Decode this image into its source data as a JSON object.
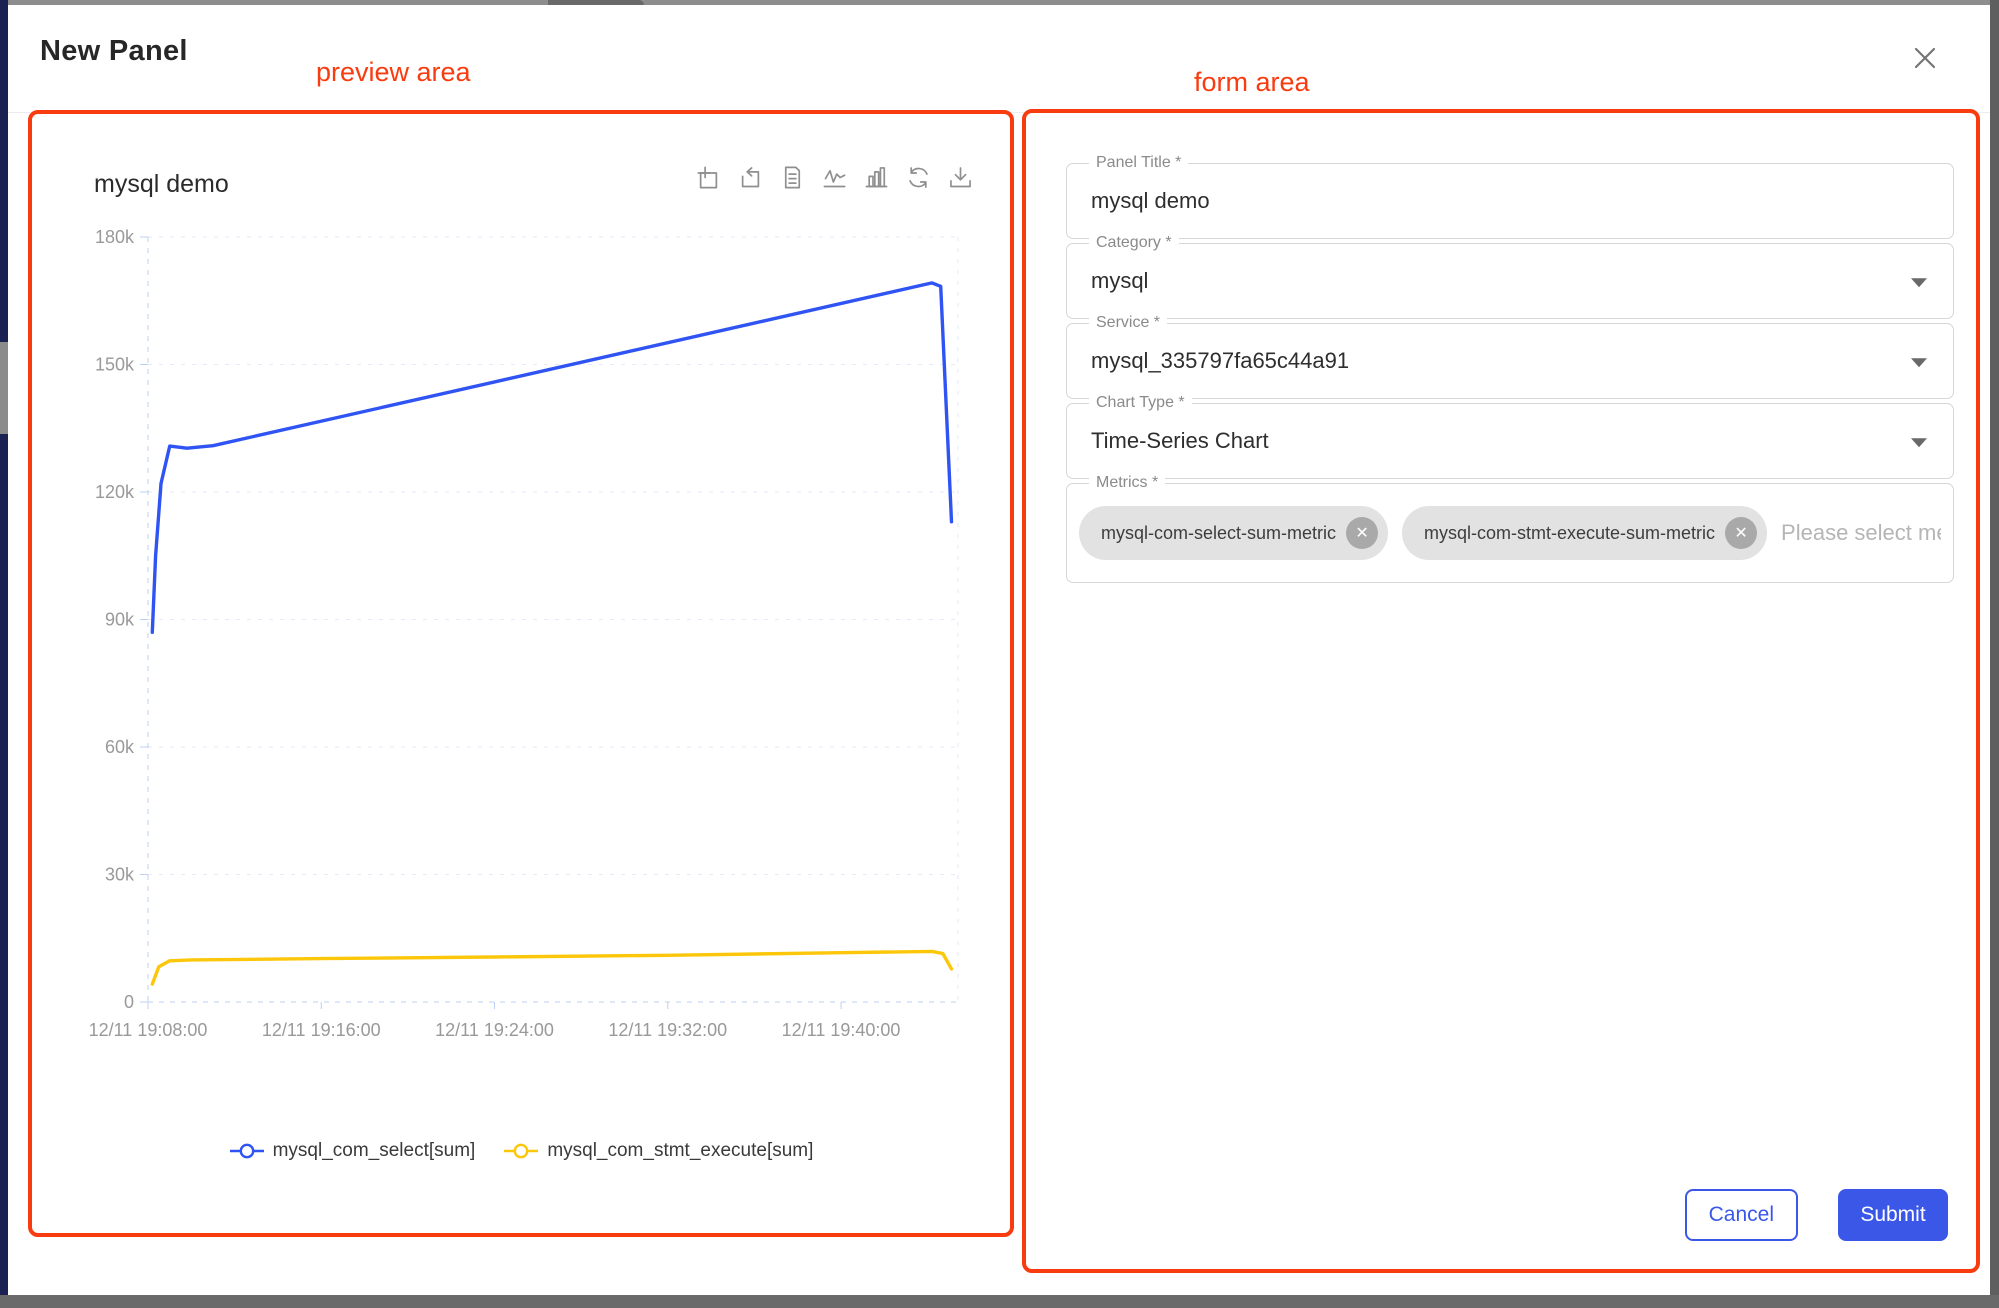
{
  "window": {
    "title": "New Panel"
  },
  "annotations": {
    "preview_label": "preview area",
    "form_label": "form area",
    "accent_color": "#f93b10"
  },
  "preview": {
    "toolbar_icons": [
      "zoom-select",
      "zoom-reset",
      "data-view",
      "line-chart",
      "bar-chart",
      "refresh",
      "download"
    ]
  },
  "chart_data": {
    "type": "line",
    "title": "mysql demo",
    "x_axis_type": "time",
    "x_tick_labels": [
      "12/11 19:08:00",
      "12/11 19:16:00",
      "12/11 19:24:00",
      "12/11 19:32:00",
      "12/11 19:40:00"
    ],
    "x_tick_minutes": [
      8,
      16,
      24,
      32,
      40
    ],
    "x_range_minutes": [
      8,
      45.4
    ],
    "ylim": [
      0,
      180000
    ],
    "y_tick_values": [
      0,
      30000,
      60000,
      90000,
      120000,
      150000,
      180000
    ],
    "y_tick_labels": [
      "0",
      "30k",
      "60k",
      "90k",
      "120k",
      "150k",
      "180k"
    ],
    "grid": "dashed",
    "legend_position": "bottom",
    "series": [
      {
        "name": "mysql_com_select[sum]",
        "color": "#2f54f3",
        "points_min_value": [
          [
            8.2,
            87000
          ],
          [
            8.35,
            105000
          ],
          [
            8.6,
            122000
          ],
          [
            9.0,
            130800
          ],
          [
            9.8,
            130300
          ],
          [
            11,
            130900
          ],
          [
            44.2,
            169200
          ],
          [
            44.6,
            168400
          ],
          [
            45.1,
            113000
          ]
        ]
      },
      {
        "name": "mysql_com_stmt_execute[sum]",
        "color": "#fcc70a",
        "points_min_value": [
          [
            8.2,
            4200
          ],
          [
            8.5,
            8300
          ],
          [
            9.0,
            9700
          ],
          [
            10,
            9900
          ],
          [
            16,
            10200
          ],
          [
            24,
            10600
          ],
          [
            32,
            11000
          ],
          [
            40,
            11600
          ],
          [
            44.2,
            11900
          ],
          [
            44.7,
            11400
          ],
          [
            45.1,
            7800
          ]
        ]
      }
    ]
  },
  "form": {
    "fields": [
      {
        "label": "Panel Title *",
        "value": "mysql demo",
        "type": "text"
      },
      {
        "label": "Category *",
        "value": "mysql",
        "type": "select"
      },
      {
        "label": "Service *",
        "value": "mysql_335797fa65c44a91",
        "type": "select"
      },
      {
        "label": "Chart Type *",
        "value": "Time-Series Chart",
        "type": "select"
      },
      {
        "label": "Metrics *",
        "type": "chips",
        "chips": [
          "mysql-com-select-sum-metric",
          "mysql-com-stmt-execute-sum-metric"
        ],
        "placeholder": "Please select met..."
      }
    ],
    "cancel_label": "Cancel",
    "submit_label": "Submit"
  },
  "colors": {
    "submit_button": "#3a57e8",
    "series_blue": "#2f54f3",
    "series_yellow": "#fcc70a",
    "sidebar_navy": "#1b2153"
  }
}
